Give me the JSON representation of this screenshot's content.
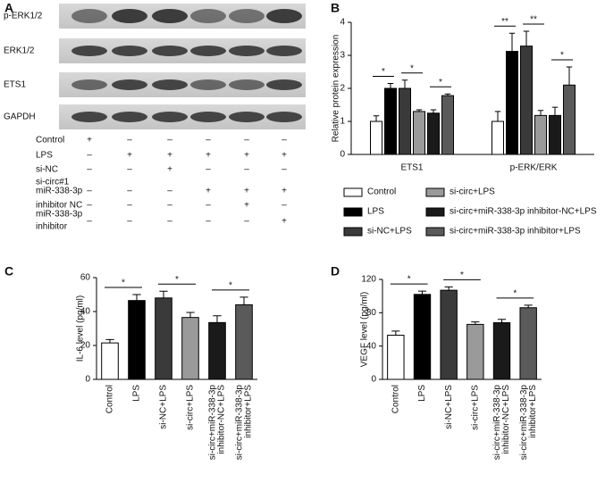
{
  "panel_labels": [
    "A",
    "B",
    "C",
    "D"
  ],
  "blot": {
    "rows": [
      {
        "label": "p-ERK1/2"
      },
      {
        "label": "ERK1/2"
      },
      {
        "label": "ETS1"
      },
      {
        "label": "GAPDH"
      }
    ]
  },
  "treatments": {
    "rows": [
      {
        "label_lines": [
          "Control"
        ],
        "marks": [
          "+",
          "–",
          "–",
          "–",
          "–",
          "–"
        ]
      },
      {
        "label_lines": [
          "LPS"
        ],
        "marks": [
          "–",
          "+",
          "+",
          "+",
          "+",
          "+"
        ]
      },
      {
        "label_lines": [
          "si-NC"
        ],
        "marks": [
          "–",
          "–",
          "+",
          "–",
          "–",
          "–"
        ]
      },
      {
        "label_lines": [
          "si-circ#1",
          "miR-338-3p"
        ],
        "marks": [
          "–",
          "–",
          "–",
          "+",
          "+",
          "+"
        ]
      },
      {
        "label_lines": [
          "inhibitor NC"
        ],
        "marks": [
          "–",
          "–",
          "–",
          "–",
          "+",
          "–"
        ]
      },
      {
        "label_lines": [
          "miR-338-3p",
          "inhibitor"
        ],
        "marks": [
          "–",
          "–",
          "–",
          "–",
          "–",
          "+"
        ]
      }
    ]
  },
  "chart_data": [
    {
      "type": "grouped-bar",
      "y_label": "Relative protein expression",
      "categories": [
        "ETS1",
        "p-ERK/ERK"
      ],
      "ylim": [
        0,
        4
      ],
      "yticks": [
        0,
        1,
        2,
        3,
        4
      ],
      "series": [
        {
          "name": "Control",
          "color": "#ffffff",
          "values": [
            1.0,
            1.0
          ],
          "errors": [
            0.17,
            0.3
          ]
        },
        {
          "name": "LPS",
          "color": "#000000",
          "values": [
            2.0,
            3.12
          ],
          "errors": [
            0.15,
            0.55
          ]
        },
        {
          "name": "si-NC+LPS",
          "color": "#3a3a3a",
          "values": [
            2.0,
            3.28
          ],
          "errors": [
            0.25,
            0.45
          ]
        },
        {
          "name": "si-circ+LPS",
          "color": "#9a9a9a",
          "values": [
            1.3,
            1.18
          ],
          "errors": [
            0.05,
            0.15
          ]
        },
        {
          "name": "si-circ+miR-338-3p inhibitor-NC+LPS",
          "color": "#1a1a1a",
          "values": [
            1.25,
            1.18
          ],
          "errors": [
            0.1,
            0.25
          ]
        },
        {
          "name": "si-circ+miR-338-3p inhibitor+LPS",
          "color": "#5a5a5a",
          "values": [
            1.78,
            2.1
          ],
          "errors": [
            0.05,
            0.55
          ]
        }
      ],
      "significance": [
        {
          "category": "ETS1",
          "between": [
            "Control",
            "LPS"
          ],
          "label": "*"
        },
        {
          "category": "ETS1",
          "between": [
            "si-NC+LPS",
            "si-circ+LPS"
          ],
          "label": "*"
        },
        {
          "category": "ETS1",
          "between": [
            "si-circ+miR-338-3p inhibitor-NC+LPS",
            "si-circ+miR-338-3p inhibitor+LPS"
          ],
          "label": "*"
        },
        {
          "category": "p-ERK/ERK",
          "between": [
            "Control",
            "LPS"
          ],
          "label": "**"
        },
        {
          "category": "p-ERK/ERK",
          "between": [
            "si-NC+LPS",
            "si-circ+LPS"
          ],
          "label": "**"
        },
        {
          "category": "p-ERK/ERK",
          "between": [
            "si-circ+miR-338-3p inhibitor-NC+LPS",
            "si-circ+miR-338-3p inhibitor+LPS"
          ],
          "label": "*"
        }
      ]
    },
    {
      "type": "bar",
      "y_label": "IL-6 level (pg/ml)",
      "ylim": [
        0,
        60
      ],
      "yticks": [
        0,
        20,
        40,
        60
      ],
      "categories": [
        [
          "Control"
        ],
        [
          "LPS"
        ],
        [
          "si-NC+LPS"
        ],
        [
          "si-circ+LPS"
        ],
        [
          "si-circ+miR-338-3p",
          "inhibitor-NC+LPS"
        ],
        [
          "si-circ+miR-338-3p",
          "inhibitor+LPS"
        ]
      ],
      "colors": [
        "#ffffff",
        "#000000",
        "#3a3a3a",
        "#9a9a9a",
        "#1a1a1a",
        "#5a5a5a"
      ],
      "values": [
        21.5,
        46.5,
        48,
        36.5,
        33.5,
        44
      ],
      "errors": [
        2,
        3.5,
        4,
        3,
        4,
        4.5
      ],
      "significance": [
        {
          "between": [
            0,
            1
          ],
          "label": "*"
        },
        {
          "between": [
            2,
            3
          ],
          "label": "*"
        },
        {
          "between": [
            4,
            5
          ],
          "label": "*"
        }
      ]
    },
    {
      "type": "bar",
      "y_label": "VEGF level (pg/ml)",
      "ylim": [
        0,
        120
      ],
      "yticks": [
        0,
        40,
        80,
        120
      ],
      "categories": [
        [
          "Control"
        ],
        [
          "LPS"
        ],
        [
          "si-NC+LPS"
        ],
        [
          "si-circ+LPS"
        ],
        [
          "si-circ+miR-338-3p",
          "inhibitor-NC+LPS"
        ],
        [
          "si-circ+miR-338-3p",
          "inhibitor+LPS"
        ]
      ],
      "colors": [
        "#ffffff",
        "#000000",
        "#3a3a3a",
        "#9a9a9a",
        "#1a1a1a",
        "#5a5a5a"
      ],
      "values": [
        53,
        102,
        107,
        66,
        68,
        86
      ],
      "errors": [
        5,
        4,
        4,
        3,
        4,
        3
      ],
      "significance": [
        {
          "between": [
            0,
            1
          ],
          "label": "*"
        },
        {
          "between": [
            2,
            3
          ],
          "label": "*"
        },
        {
          "between": [
            4,
            5
          ],
          "label": "*"
        }
      ]
    }
  ]
}
